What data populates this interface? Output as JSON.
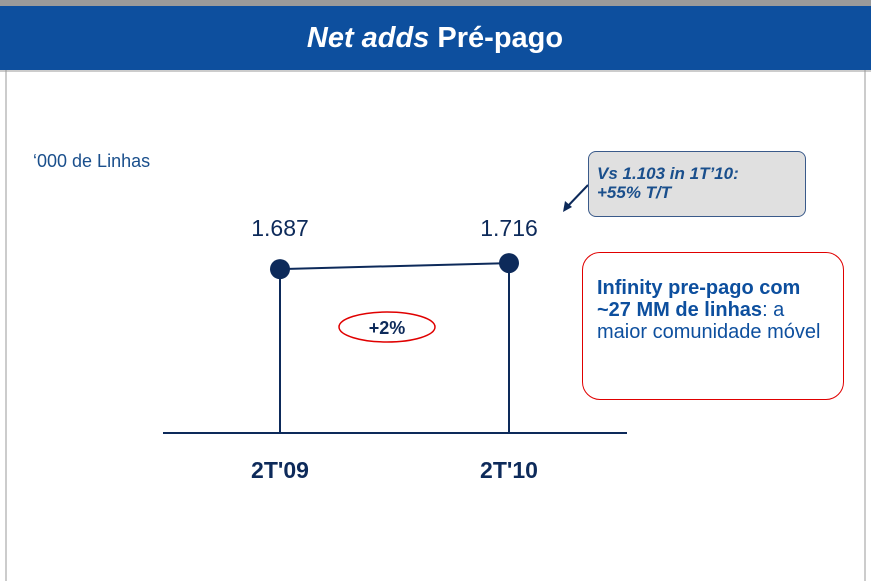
{
  "chart_data": {
    "type": "line",
    "title": [
      "Net adds",
      "Pré-pago"
    ],
    "y_label": "‘000 de Linhas",
    "categories": [
      "2T'09",
      "2T'10"
    ],
    "values": [
      1687,
      1716
    ],
    "value_labels": [
      "1.687",
      "1.716"
    ],
    "ylim": [
      900,
      1750
    ],
    "color": "#0d2a5a",
    "growth": "+2%",
    "note": [
      "Vs 1.103 in 1T’10:",
      "+55% T/T"
    ],
    "callout": [
      "Infinity pre-pago com ~27 MM de linhas",
      ": a maior comunidade móvel"
    ]
  }
}
